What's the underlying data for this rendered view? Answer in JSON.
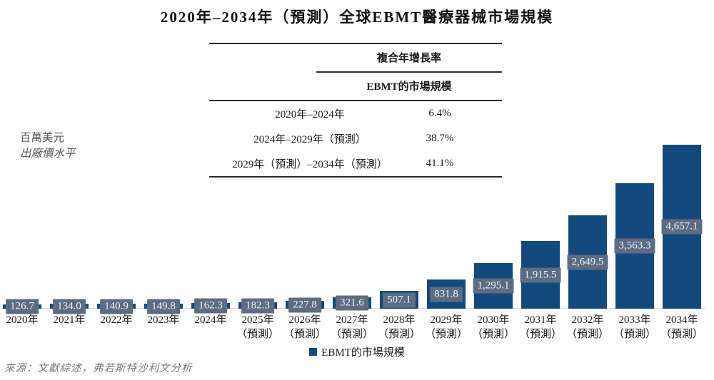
{
  "y_axis": {
    "line1": "百萬美元",
    "line2": "出廠價水平"
  },
  "cagr_table": {
    "header1": "複合年增長率",
    "header2": "EBMT的市場規模"
  },
  "source": "來源：文獻綜述，弗若斯特沙利文分析",
  "colors": {
    "bar": "#14497E",
    "label_box": "#5C6C83",
    "label_text": "#EFF1F4",
    "axis_line": "#D8D8D8"
  },
  "chart_data": {
    "type": "bar",
    "title": "2020年–2034年（預測）全球EBMT醫療器械市場規模",
    "ylabel": "百萬美元（出廠價水平）",
    "series_name": "EBMT的市場規模",
    "ylim": [
      0,
      4700
    ],
    "grid": false,
    "legend_position": "bottom",
    "forecast_suffix": "（預測）",
    "bars": [
      {
        "category": "2020年",
        "forecast": false,
        "value": 126.7,
        "label": "126.7"
      },
      {
        "category": "2021年",
        "forecast": false,
        "value": 134.0,
        "label": "134.0"
      },
      {
        "category": "2022年",
        "forecast": false,
        "value": 140.9,
        "label": "140.9"
      },
      {
        "category": "2023年",
        "forecast": false,
        "value": 149.8,
        "label": "149.8"
      },
      {
        "category": "2024年",
        "forecast": false,
        "value": 162.3,
        "label": "162.3"
      },
      {
        "category": "2025年",
        "forecast": true,
        "value": 182.3,
        "label": "182.3"
      },
      {
        "category": "2026年",
        "forecast": true,
        "value": 227.8,
        "label": "227.8"
      },
      {
        "category": "2027年",
        "forecast": true,
        "value": 321.6,
        "label": "321.6"
      },
      {
        "category": "2028年",
        "forecast": true,
        "value": 507.1,
        "label": "507.1"
      },
      {
        "category": "2029年",
        "forecast": true,
        "value": 831.8,
        "label": "831.8"
      },
      {
        "category": "2030年",
        "forecast": true,
        "value": 1295.1,
        "label": "1,295.1"
      },
      {
        "category": "2031年",
        "forecast": true,
        "value": 1915.5,
        "label": "1,915.5"
      },
      {
        "category": "2032年",
        "forecast": true,
        "value": 2649.5,
        "label": "2,649.5"
      },
      {
        "category": "2033年",
        "forecast": true,
        "value": 3563.3,
        "label": "3,563.3"
      },
      {
        "category": "2034年",
        "forecast": true,
        "value": 4657.1,
        "label": "4,657.1"
      }
    ],
    "cagr": [
      {
        "period": "2020年–2024年",
        "value": "6.4%"
      },
      {
        "period": "2024年–2029年（預測）",
        "value": "38.7%"
      },
      {
        "period": "2029年（預測）–2034年（預測）",
        "value": "41.1%"
      }
    ]
  }
}
